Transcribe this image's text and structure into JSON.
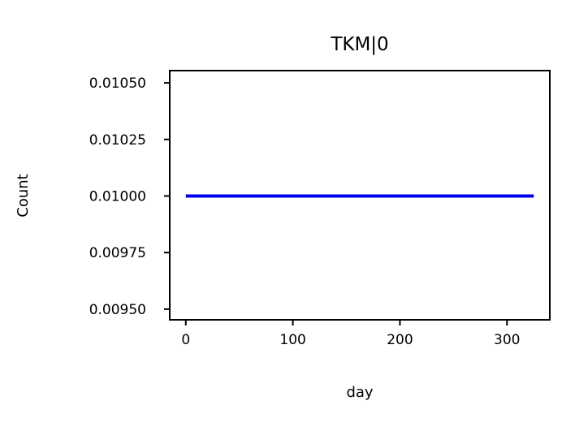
{
  "chart_data": {
    "type": "line",
    "title": "TKM|0",
    "xlabel": "day",
    "ylabel": "Count",
    "xlim": [
      -15,
      340
    ],
    "ylim": [
      0.009453,
      0.010554
    ],
    "x_ticks": [
      0,
      100,
      200,
      300
    ],
    "x_tick_labels": [
      "0",
      "100",
      "200",
      "300"
    ],
    "y_ticks": [
      0.0095,
      0.00975,
      0.01,
      0.01025,
      0.0105
    ],
    "y_tick_labels": [
      "0.00950",
      "0.00975",
      "0.01000",
      "0.01025",
      "0.01050"
    ],
    "grid": false,
    "series": [
      {
        "color": "#0000ee",
        "x": [
          0,
          325
        ],
        "y": [
          0.01,
          0.01
        ]
      }
    ]
  }
}
